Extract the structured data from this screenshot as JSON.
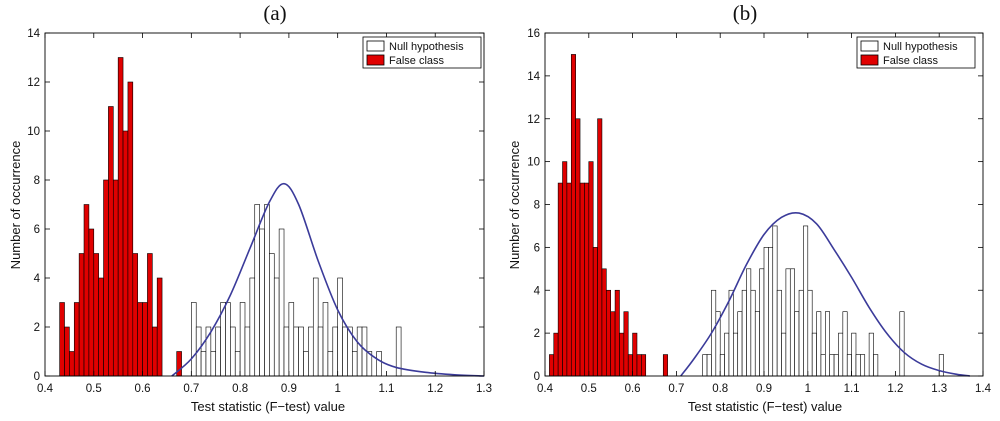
{
  "chart_data": [
    {
      "type": "bar",
      "panel_label": "(a)",
      "xlabel": "Test statistic (F−test) value",
      "ylabel": "Number of occurrence",
      "xlim": [
        0.4,
        1.3
      ],
      "ylim": [
        0,
        14
      ],
      "xticks": [
        0.4,
        0.5,
        0.6,
        0.7,
        0.8,
        0.9,
        1.0,
        1.1,
        1.2,
        1.3
      ],
      "xtick_labels": [
        "0.4",
        "0.5",
        "0.6",
        "0.7",
        "0.8",
        "0.9",
        "1",
        "1.1",
        "1.2",
        "1.3"
      ],
      "yticks": [
        0,
        2,
        4,
        6,
        8,
        10,
        12,
        14
      ],
      "ytick_labels": [
        "0",
        "2",
        "4",
        "6",
        "8",
        "10",
        "12",
        "14"
      ],
      "legend": {
        "position": "top-right",
        "entries": [
          "Null hypothesis",
          "False class"
        ]
      },
      "bin_width": 0.01,
      "series": [
        {
          "name": "False class",
          "color": "#e00000",
          "bins": [
            {
              "x": 0.43,
              "y": 3
            },
            {
              "x": 0.44,
              "y": 2
            },
            {
              "x": 0.45,
              "y": 1
            },
            {
              "x": 0.46,
              "y": 3
            },
            {
              "x": 0.47,
              "y": 5
            },
            {
              "x": 0.48,
              "y": 7
            },
            {
              "x": 0.49,
              "y": 6
            },
            {
              "x": 0.5,
              "y": 5
            },
            {
              "x": 0.51,
              "y": 4
            },
            {
              "x": 0.52,
              "y": 8
            },
            {
              "x": 0.53,
              "y": 11
            },
            {
              "x": 0.54,
              "y": 8
            },
            {
              "x": 0.55,
              "y": 13
            },
            {
              "x": 0.56,
              "y": 10
            },
            {
              "x": 0.57,
              "y": 12
            },
            {
              "x": 0.58,
              "y": 5
            },
            {
              "x": 0.59,
              "y": 3
            },
            {
              "x": 0.6,
              "y": 3
            },
            {
              "x": 0.61,
              "y": 5
            },
            {
              "x": 0.62,
              "y": 2
            },
            {
              "x": 0.63,
              "y": 4
            },
            {
              "x": 0.67,
              "y": 1
            }
          ]
        },
        {
          "name": "Null hypothesis",
          "color": "#ffffff",
          "bins": [
            {
              "x": 0.7,
              "y": 3
            },
            {
              "x": 0.71,
              "y": 2
            },
            {
              "x": 0.72,
              "y": 1
            },
            {
              "x": 0.73,
              "y": 2
            },
            {
              "x": 0.74,
              "y": 1
            },
            {
              "x": 0.75,
              "y": 2
            },
            {
              "x": 0.76,
              "y": 3
            },
            {
              "x": 0.77,
              "y": 3
            },
            {
              "x": 0.78,
              "y": 2
            },
            {
              "x": 0.79,
              "y": 1
            },
            {
              "x": 0.8,
              "y": 3
            },
            {
              "x": 0.81,
              "y": 2
            },
            {
              "x": 0.82,
              "y": 4
            },
            {
              "x": 0.83,
              "y": 7
            },
            {
              "x": 0.84,
              "y": 6
            },
            {
              "x": 0.85,
              "y": 7
            },
            {
              "x": 0.86,
              "y": 5
            },
            {
              "x": 0.87,
              "y": 4
            },
            {
              "x": 0.88,
              "y": 6
            },
            {
              "x": 0.89,
              "y": 2
            },
            {
              "x": 0.9,
              "y": 3
            },
            {
              "x": 0.91,
              "y": 2
            },
            {
              "x": 0.92,
              "y": 2
            },
            {
              "x": 0.93,
              "y": 1
            },
            {
              "x": 0.94,
              "y": 2
            },
            {
              "x": 0.95,
              "y": 4
            },
            {
              "x": 0.96,
              "y": 2
            },
            {
              "x": 0.97,
              "y": 3
            },
            {
              "x": 0.98,
              "y": 1
            },
            {
              "x": 0.99,
              "y": 2
            },
            {
              "x": 1.0,
              "y": 4
            },
            {
              "x": 1.01,
              "y": 2
            },
            {
              "x": 1.02,
              "y": 2
            },
            {
              "x": 1.03,
              "y": 1
            },
            {
              "x": 1.04,
              "y": 2
            },
            {
              "x": 1.05,
              "y": 2
            },
            {
              "x": 1.06,
              "y": 1
            },
            {
              "x": 1.08,
              "y": 1
            },
            {
              "x": 1.12,
              "y": 2
            }
          ]
        }
      ],
      "fit_curve": {
        "color": "#3b3b9a",
        "points": [
          [
            0.66,
            0
          ],
          [
            0.7,
            0.7
          ],
          [
            0.74,
            1.8
          ],
          [
            0.78,
            3.3
          ],
          [
            0.82,
            5.2
          ],
          [
            0.86,
            7.1
          ],
          [
            0.89,
            7.85
          ],
          [
            0.92,
            7.0
          ],
          [
            0.96,
            4.7
          ],
          [
            1.0,
            2.7
          ],
          [
            1.04,
            1.4
          ],
          [
            1.08,
            0.7
          ],
          [
            1.12,
            0.35
          ],
          [
            1.18,
            0.15
          ],
          [
            1.24,
            0.05
          ],
          [
            1.3,
            0.0
          ]
        ]
      }
    },
    {
      "type": "bar",
      "panel_label": "(b)",
      "xlabel": "Test statistic (F−test) value",
      "ylabel": "Number of occurrence",
      "xlim": [
        0.4,
        1.4
      ],
      "ylim": [
        0,
        16
      ],
      "xticks": [
        0.4,
        0.5,
        0.6,
        0.7,
        0.8,
        0.9,
        1.0,
        1.1,
        1.2,
        1.3,
        1.4
      ],
      "xtick_labels": [
        "0.4",
        "0.5",
        "0.6",
        "0.7",
        "0.8",
        "0.9",
        "1",
        "1.1",
        "1.2",
        "1.3",
        "1.4"
      ],
      "yticks": [
        0,
        2,
        4,
        6,
        8,
        10,
        12,
        14,
        16
      ],
      "ytick_labels": [
        "0",
        "2",
        "4",
        "6",
        "8",
        "10",
        "12",
        "14",
        "16"
      ],
      "legend": {
        "position": "top-right",
        "entries": [
          "Null hypothesis",
          "False class"
        ]
      },
      "bin_width": 0.01,
      "series": [
        {
          "name": "False class",
          "color": "#e00000",
          "bins": [
            {
              "x": 0.41,
              "y": 1
            },
            {
              "x": 0.42,
              "y": 2
            },
            {
              "x": 0.43,
              "y": 9
            },
            {
              "x": 0.44,
              "y": 10
            },
            {
              "x": 0.45,
              "y": 9
            },
            {
              "x": 0.46,
              "y": 15
            },
            {
              "x": 0.47,
              "y": 12
            },
            {
              "x": 0.48,
              "y": 9
            },
            {
              "x": 0.49,
              "y": 9
            },
            {
              "x": 0.5,
              "y": 10
            },
            {
              "x": 0.51,
              "y": 6
            },
            {
              "x": 0.52,
              "y": 12
            },
            {
              "x": 0.53,
              "y": 5
            },
            {
              "x": 0.54,
              "y": 4
            },
            {
              "x": 0.55,
              "y": 3
            },
            {
              "x": 0.56,
              "y": 4
            },
            {
              "x": 0.57,
              "y": 2
            },
            {
              "x": 0.58,
              "y": 3
            },
            {
              "x": 0.59,
              "y": 1
            },
            {
              "x": 0.6,
              "y": 2
            },
            {
              "x": 0.61,
              "y": 1
            },
            {
              "x": 0.62,
              "y": 1
            },
            {
              "x": 0.67,
              "y": 1
            }
          ]
        },
        {
          "name": "Null hypothesis",
          "color": "#ffffff",
          "bins": [
            {
              "x": 0.76,
              "y": 1
            },
            {
              "x": 0.77,
              "y": 1
            },
            {
              "x": 0.78,
              "y": 4
            },
            {
              "x": 0.79,
              "y": 3
            },
            {
              "x": 0.8,
              "y": 1
            },
            {
              "x": 0.81,
              "y": 2
            },
            {
              "x": 0.82,
              "y": 4
            },
            {
              "x": 0.83,
              "y": 2
            },
            {
              "x": 0.84,
              "y": 3
            },
            {
              "x": 0.85,
              "y": 4
            },
            {
              "x": 0.86,
              "y": 5
            },
            {
              "x": 0.87,
              "y": 4
            },
            {
              "x": 0.88,
              "y": 3
            },
            {
              "x": 0.89,
              "y": 5
            },
            {
              "x": 0.9,
              "y": 6
            },
            {
              "x": 0.91,
              "y": 6
            },
            {
              "x": 0.92,
              "y": 7
            },
            {
              "x": 0.93,
              "y": 4
            },
            {
              "x": 0.94,
              "y": 2
            },
            {
              "x": 0.95,
              "y": 5
            },
            {
              "x": 0.96,
              "y": 5
            },
            {
              "x": 0.97,
              "y": 3
            },
            {
              "x": 0.98,
              "y": 4
            },
            {
              "x": 0.99,
              "y": 7
            },
            {
              "x": 1.0,
              "y": 4
            },
            {
              "x": 1.01,
              "y": 2
            },
            {
              "x": 1.02,
              "y": 3
            },
            {
              "x": 1.03,
              "y": 1
            },
            {
              "x": 1.04,
              "y": 3
            },
            {
              "x": 1.05,
              "y": 1
            },
            {
              "x": 1.06,
              "y": 1
            },
            {
              "x": 1.07,
              "y": 2
            },
            {
              "x": 1.08,
              "y": 3
            },
            {
              "x": 1.09,
              "y": 1
            },
            {
              "x": 1.1,
              "y": 2
            },
            {
              "x": 1.11,
              "y": 1
            },
            {
              "x": 1.12,
              "y": 1
            },
            {
              "x": 1.14,
              "y": 2
            },
            {
              "x": 1.15,
              "y": 1
            },
            {
              "x": 1.21,
              "y": 3
            },
            {
              "x": 1.3,
              "y": 1
            }
          ]
        }
      ],
      "fit_curve": {
        "color": "#3b3b9a",
        "points": [
          [
            0.71,
            0
          ],
          [
            0.74,
            0.8
          ],
          [
            0.78,
            2.0
          ],
          [
            0.82,
            3.5
          ],
          [
            0.86,
            5.2
          ],
          [
            0.9,
            6.6
          ],
          [
            0.94,
            7.4
          ],
          [
            0.98,
            7.6
          ],
          [
            1.02,
            7.1
          ],
          [
            1.06,
            5.9
          ],
          [
            1.1,
            4.6
          ],
          [
            1.14,
            3.2
          ],
          [
            1.18,
            2.0
          ],
          [
            1.22,
            1.1
          ],
          [
            1.26,
            0.55
          ],
          [
            1.3,
            0.25
          ],
          [
            1.34,
            0.08
          ],
          [
            1.37,
            0.0
          ]
        ]
      }
    }
  ]
}
